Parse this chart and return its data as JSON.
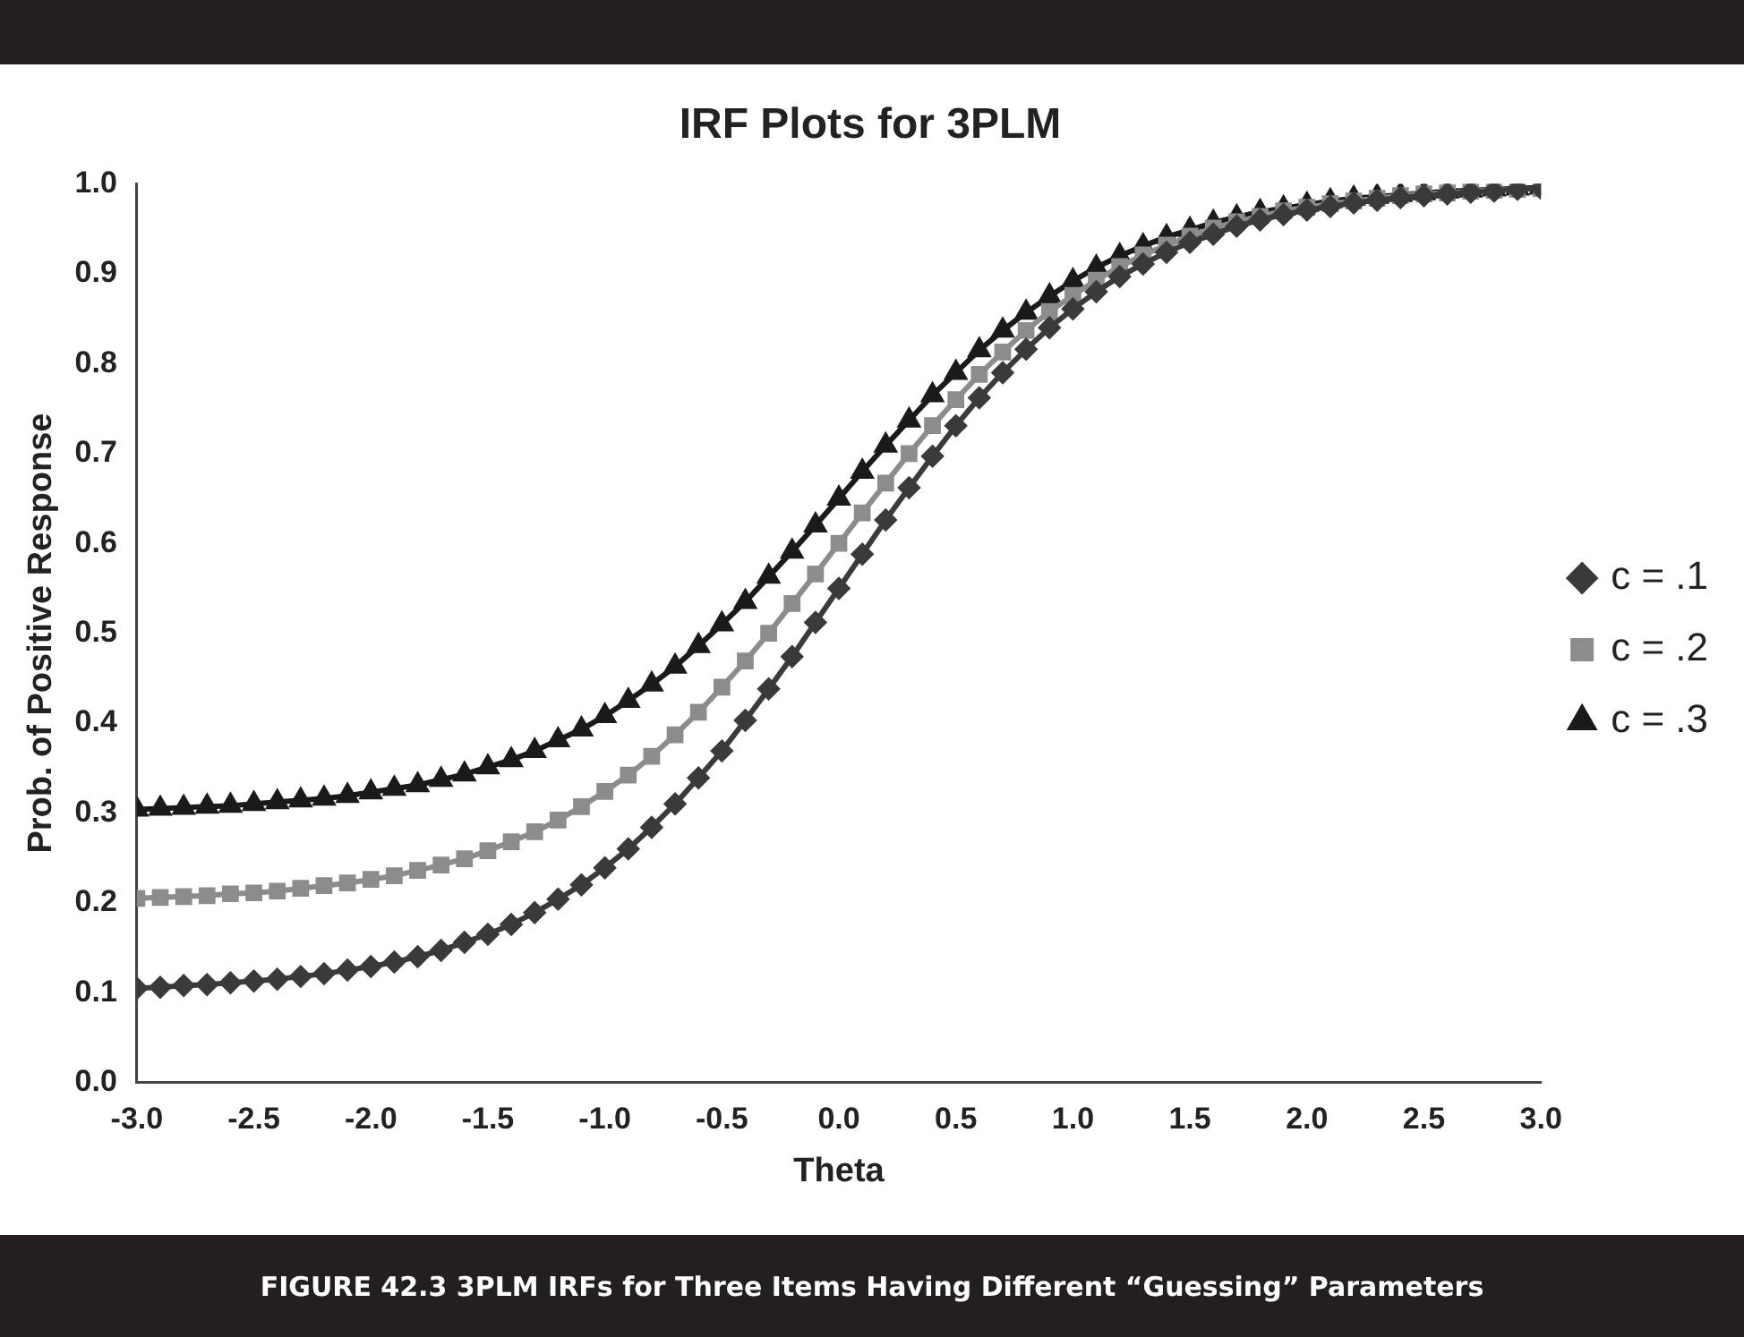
{
  "chart_data": {
    "type": "line",
    "title": "IRF Plots for 3PLM",
    "xlabel": "Theta",
    "ylabel": "Prob. of Positive Response",
    "annotations": [
      "FIGURE 42.3   3PLM IRFs for Three Items Having Different “Guessing” Parameters"
    ],
    "x": [
      -3.0,
      -2.9,
      -2.8,
      -2.7,
      -2.6,
      -2.5,
      -2.4,
      -2.3,
      -2.2,
      -2.1,
      -2.0,
      -1.9,
      -1.8,
      -1.7,
      -1.6,
      -1.5,
      -1.4,
      -1.3,
      -1.2,
      -1.1,
      -1.0,
      -0.9,
      -0.8,
      -0.7,
      -0.6,
      -0.5,
      -0.4,
      -0.3,
      -0.2,
      -0.1,
      0.0,
      0.1,
      0.2,
      0.3,
      0.4,
      0.5,
      0.6,
      0.7,
      0.8,
      0.9,
      1.0,
      1.1,
      1.2,
      1.3,
      1.4,
      1.5,
      1.6,
      1.7,
      1.8,
      1.9,
      2.0,
      2.1,
      2.2,
      2.3,
      2.4,
      2.5,
      2.6,
      2.7,
      2.8,
      2.9,
      3.0
    ],
    "series": [
      {
        "name": "c = .1",
        "color": "#3a3a3a",
        "marker": "diamond",
        "values": [
          0.105,
          0.106,
          0.108,
          0.109,
          0.111,
          0.113,
          0.115,
          0.118,
          0.121,
          0.125,
          0.129,
          0.134,
          0.14,
          0.147,
          0.156,
          0.165,
          0.176,
          0.189,
          0.204,
          0.22,
          0.239,
          0.26,
          0.284,
          0.31,
          0.339,
          0.369,
          0.403,
          0.438,
          0.474,
          0.512,
          0.55,
          0.588,
          0.626,
          0.662,
          0.697,
          0.731,
          0.762,
          0.79,
          0.816,
          0.84,
          0.861,
          0.88,
          0.897,
          0.911,
          0.924,
          0.935,
          0.944,
          0.953,
          0.96,
          0.966,
          0.971,
          0.975,
          0.979,
          0.982,
          0.985,
          0.987,
          0.989,
          0.991,
          0.992,
          0.994,
          0.995
        ]
      },
      {
        "name": "c = .2",
        "color": "#8c8c8c",
        "marker": "square",
        "values": [
          0.205,
          0.206,
          0.207,
          0.208,
          0.21,
          0.211,
          0.213,
          0.216,
          0.219,
          0.222,
          0.226,
          0.23,
          0.236,
          0.242,
          0.249,
          0.258,
          0.268,
          0.279,
          0.292,
          0.307,
          0.324,
          0.342,
          0.363,
          0.387,
          0.412,
          0.44,
          0.469,
          0.5,
          0.533,
          0.566,
          0.6,
          0.634,
          0.667,
          0.7,
          0.731,
          0.76,
          0.788,
          0.813,
          0.837,
          0.858,
          0.876,
          0.893,
          0.908,
          0.921,
          0.932,
          0.942,
          0.951,
          0.958,
          0.964,
          0.97,
          0.974,
          0.978,
          0.981,
          0.984,
          0.987,
          0.989,
          0.99,
          0.992,
          0.993,
          0.994,
          0.995
        ]
      },
      {
        "name": "c = .3",
        "color": "#1a1a1a",
        "marker": "triangle",
        "values": [
          0.304,
          0.305,
          0.306,
          0.307,
          0.308,
          0.31,
          0.312,
          0.314,
          0.316,
          0.319,
          0.323,
          0.327,
          0.331,
          0.337,
          0.343,
          0.351,
          0.359,
          0.369,
          0.381,
          0.393,
          0.408,
          0.425,
          0.443,
          0.463,
          0.486,
          0.51,
          0.535,
          0.563,
          0.591,
          0.62,
          0.65,
          0.68,
          0.709,
          0.737,
          0.765,
          0.79,
          0.815,
          0.837,
          0.857,
          0.875,
          0.892,
          0.907,
          0.92,
          0.931,
          0.941,
          0.949,
          0.957,
          0.963,
          0.969,
          0.973,
          0.977,
          0.981,
          0.984,
          0.986,
          0.988,
          0.99,
          0.992,
          0.993,
          0.994,
          0.995,
          0.996
        ]
      }
    ],
    "xlim": [
      -3,
      3
    ],
    "xticks": [
      {
        "value": -3,
        "label": "-3.0"
      },
      {
        "value": -2.5,
        "label": "-2.5"
      },
      {
        "value": -2,
        "label": "-2.0"
      },
      {
        "value": -1.5,
        "label": "-1.5"
      },
      {
        "value": -1,
        "label": "-1.0"
      },
      {
        "value": -0.5,
        "label": "-0.5"
      },
      {
        "value": 0,
        "label": "0.0"
      },
      {
        "value": 0.5,
        "label": "0.5"
      },
      {
        "value": 1,
        "label": "1.0"
      },
      {
        "value": 1.5,
        "label": "1.5"
      },
      {
        "value": 2,
        "label": "2.0"
      },
      {
        "value": 2.5,
        "label": "2.5"
      },
      {
        "value": 3,
        "label": "3.0"
      }
    ],
    "ylim": [
      0,
      1
    ],
    "yticks": [
      {
        "value": 0,
        "label": "0.0"
      },
      {
        "value": 0.1,
        "label": "0.1"
      },
      {
        "value": 0.2,
        "label": "0.2"
      },
      {
        "value": 0.3,
        "label": "0.3"
      },
      {
        "value": 0.4,
        "label": "0.4"
      },
      {
        "value": 0.5,
        "label": "0.5"
      },
      {
        "value": 0.6,
        "label": "0.6"
      },
      {
        "value": 0.7,
        "label": "0.7"
      },
      {
        "value": 0.8,
        "label": "0.8"
      },
      {
        "value": 0.9,
        "label": "0.9"
      },
      {
        "value": 1,
        "label": "1.0"
      }
    ],
    "legend": "right",
    "line_style": "solid"
  }
}
